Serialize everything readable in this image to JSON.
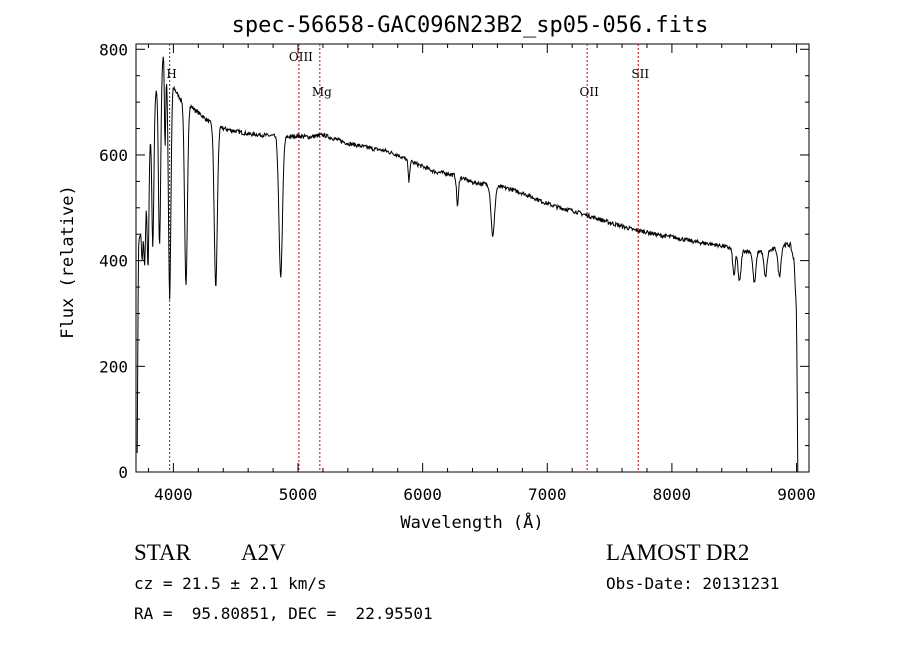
{
  "chart_data": {
    "type": "line",
    "title": "spec-56658-GAC096N23B2_sp05-056.fits",
    "xlabel": "Wavelength (Å)",
    "ylabel": "Flux (relative)",
    "xlim": [
      3700,
      9100
    ],
    "ylim": [
      0,
      810
    ],
    "x_ticks": [
      4000,
      5000,
      6000,
      7000,
      8000,
      9000
    ],
    "y_ticks": [
      0,
      200,
      400,
      600,
      800
    ],
    "grid": false,
    "line_color": "#000000",
    "marker_color": "#cc0000",
    "lines": [
      {
        "label": "H",
        "wavelength": 3970
      },
      {
        "label": "OIII",
        "wavelength": 5007
      },
      {
        "label": "Mg",
        "wavelength": 5175
      },
      {
        "label": "OII",
        "wavelength": 7320
      },
      {
        "label": "SII",
        "wavelength": 7730
      }
    ],
    "continuum": [
      [
        3710,
        40
      ],
      [
        3720,
        430
      ],
      [
        3740,
        460
      ],
      [
        3760,
        480
      ],
      [
        3780,
        520
      ],
      [
        3800,
        600
      ],
      [
        3830,
        680
      ],
      [
        3860,
        720
      ],
      [
        3890,
        760
      ],
      [
        3920,
        790
      ],
      [
        3950,
        760
      ],
      [
        3980,
        740
      ],
      [
        4020,
        720
      ],
      [
        4060,
        705
      ],
      [
        4100,
        700
      ],
      [
        4150,
        690
      ],
      [
        4200,
        680
      ],
      [
        4260,
        668
      ],
      [
        4330,
        655
      ],
      [
        4400,
        650
      ],
      [
        4500,
        645
      ],
      [
        4600,
        640
      ],
      [
        4700,
        638
      ],
      [
        4800,
        636
      ],
      [
        4900,
        634
      ],
      [
        5000,
        636
      ],
      [
        5100,
        634
      ],
      [
        5200,
        638
      ],
      [
        5300,
        630
      ],
      [
        5400,
        622
      ],
      [
        5500,
        617
      ],
      [
        5600,
        612
      ],
      [
        5700,
        608
      ],
      [
        5800,
        600
      ],
      [
        5900,
        588
      ],
      [
        6000,
        578
      ],
      [
        6100,
        568
      ],
      [
        6200,
        565
      ],
      [
        6300,
        558
      ],
      [
        6400,
        548
      ],
      [
        6500,
        545
      ],
      [
        6600,
        540
      ],
      [
        6700,
        536
      ],
      [
        6800,
        528
      ],
      [
        6900,
        518
      ],
      [
        7000,
        508
      ],
      [
        7100,
        500
      ],
      [
        7200,
        495
      ],
      [
        7300,
        487
      ],
      [
        7400,
        480
      ],
      [
        7500,
        472
      ],
      [
        7600,
        465
      ],
      [
        7700,
        458
      ],
      [
        7800,
        454
      ],
      [
        7900,
        448
      ],
      [
        8000,
        445
      ],
      [
        8100,
        440
      ],
      [
        8200,
        435
      ],
      [
        8300,
        432
      ],
      [
        8400,
        428
      ],
      [
        8500,
        422
      ],
      [
        8600,
        418
      ],
      [
        8700,
        418
      ],
      [
        8800,
        420
      ],
      [
        8900,
        430
      ],
      [
        8950,
        430
      ],
      [
        8980,
        400
      ],
      [
        9000,
        300
      ],
      [
        9010,
        0
      ]
    ],
    "absorption_lines": [
      {
        "center": 3750,
        "depth": 70,
        "width": 6
      },
      {
        "center": 3770,
        "depth": 110,
        "width": 6
      },
      {
        "center": 3797,
        "depth": 200,
        "width": 7
      },
      {
        "center": 3835,
        "depth": 260,
        "width": 8
      },
      {
        "center": 3889,
        "depth": 330,
        "width": 9
      },
      {
        "center": 3933,
        "depth": 160,
        "width": 5
      },
      {
        "center": 3970,
        "depth": 420,
        "width": 10
      },
      {
        "center": 4101,
        "depth": 350,
        "width": 11
      },
      {
        "center": 4340,
        "depth": 305,
        "width": 12
      },
      {
        "center": 4861,
        "depth": 265,
        "width": 14
      },
      {
        "center": 5890,
        "depth": 40,
        "width": 6
      },
      {
        "center": 6280,
        "depth": 55,
        "width": 8
      },
      {
        "center": 6563,
        "depth": 95,
        "width": 14
      },
      {
        "center": 8498,
        "depth": 50,
        "width": 10
      },
      {
        "center": 8542,
        "depth": 60,
        "width": 12
      },
      {
        "center": 8662,
        "depth": 60,
        "width": 12
      },
      {
        "center": 8750,
        "depth": 50,
        "width": 12
      },
      {
        "center": 8863,
        "depth": 55,
        "width": 12
      }
    ]
  },
  "info": {
    "object_class": "STAR",
    "subclass": "A2V",
    "survey": "LAMOST DR2",
    "redshift": "cz = 21.5 ± 2.1 km/s",
    "obs_date": "Obs-Date: 20131231",
    "coords": "RA =  95.80851, DEC =  22.95501"
  }
}
